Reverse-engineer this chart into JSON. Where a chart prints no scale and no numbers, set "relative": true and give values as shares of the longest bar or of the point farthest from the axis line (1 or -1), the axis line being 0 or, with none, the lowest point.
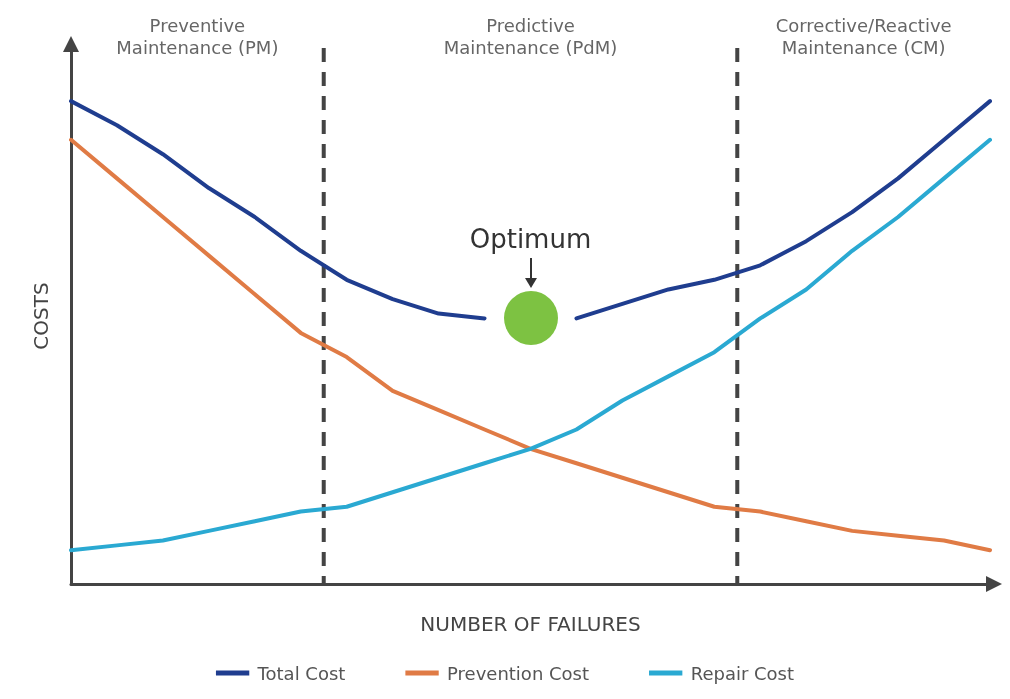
{
  "chart_data": {
    "type": "line",
    "relative": true,
    "xlabel": "NUMBER OF FAILURES",
    "ylabel": "COSTS",
    "categories": [
      null,
      null,
      null,
      null,
      null,
      null,
      null,
      null,
      null,
      null,
      null,
      null,
      null,
      null,
      null,
      null,
      null,
      null,
      null,
      null,
      null
    ],
    "series": [
      {
        "name": "Total Cost",
        "color": "#1f3d8f",
        "values": [
          1.0,
          0.95,
          0.89,
          0.82,
          0.76,
          0.69,
          0.63,
          0.59,
          0.56,
          0.55,
          null,
          0.55,
          0.58,
          0.61,
          0.63,
          0.66,
          0.71,
          0.77,
          0.84,
          0.92,
          1.0
        ]
      },
      {
        "name": "Prevention Cost",
        "color": "#e07b45",
        "values": [
          0.92,
          0.84,
          0.76,
          0.68,
          0.6,
          0.52,
          0.47,
          0.4,
          0.36,
          0.32,
          0.28,
          0.25,
          0.22,
          0.19,
          0.16,
          0.15,
          0.13,
          0.11,
          0.1,
          0.09,
          0.07
        ]
      },
      {
        "name": "Repair Cost",
        "color": "#2aa9d2",
        "values": [
          0.07,
          0.08,
          0.09,
          0.11,
          0.13,
          0.15,
          0.16,
          0.19,
          0.22,
          0.25,
          0.28,
          0.32,
          0.38,
          0.43,
          0.48,
          0.55,
          0.61,
          0.69,
          0.76,
          0.84,
          0.92
        ]
      }
    ],
    "annotations": [
      "Preventive\nMaintenance (PM)",
      "Predictive\nMaintenance (PdM)",
      "Corrective/Reactive\nMaintenance (CM)",
      "Optimum"
    ],
    "grid": false,
    "legend": "bottom",
    "marker": "none",
    "line_style": "solid"
  }
}
